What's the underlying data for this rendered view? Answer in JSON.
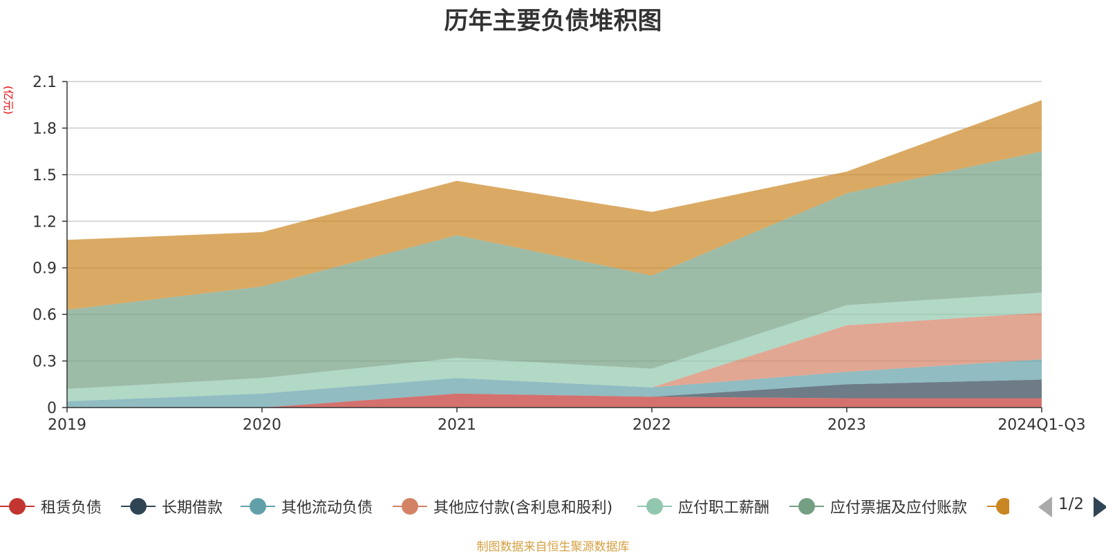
{
  "title": "历年主要负债堆积图",
  "unit_label": "(亿元)",
  "source_note": "制图数据来自恒生聚源数据库",
  "pager": {
    "text": "1/2"
  },
  "chart_data": {
    "type": "area",
    "stacked": true,
    "categories": [
      "2019",
      "2020",
      "2021",
      "2022",
      "2023",
      "2024Q1-Q3"
    ],
    "ylim": [
      0,
      2.1
    ],
    "yticks": [
      "0",
      "0.3",
      "0.6",
      "0.9",
      "1.2",
      "1.5",
      "1.8",
      "2.1"
    ],
    "grid": true,
    "legend_position": "bottom",
    "series": [
      {
        "name": "租赁负债",
        "color": "#c23531",
        "values": [
          0.0,
          0.0,
          0.09,
          0.07,
          0.06,
          0.06
        ]
      },
      {
        "name": "长期借款",
        "color": "#2f4554",
        "values": [
          0.0,
          0.0,
          0.0,
          0.0,
          0.09,
          0.12
        ]
      },
      {
        "name": "其他流动负债",
        "color": "#61a0a8",
        "values": [
          0.04,
          0.09,
          0.1,
          0.06,
          0.08,
          0.13
        ]
      },
      {
        "name": "其他应付款(含利息和股利)",
        "color": "#d48265",
        "values": [
          0.0,
          0.0,
          0.0,
          0.0,
          0.3,
          0.3
        ]
      },
      {
        "name": "应付职工薪酬",
        "color": "#91c7ae",
        "values": [
          0.08,
          0.1,
          0.13,
          0.12,
          0.13,
          0.13
        ]
      },
      {
        "name": "应付票据及应付账款",
        "color": "#749f83",
        "values": [
          0.51,
          0.59,
          0.79,
          0.6,
          0.72,
          0.91
        ]
      },
      {
        "name": "",
        "color": "#ca8622",
        "values": [
          0.45,
          0.35,
          0.35,
          0.41,
          0.14,
          0.33
        ]
      }
    ]
  }
}
